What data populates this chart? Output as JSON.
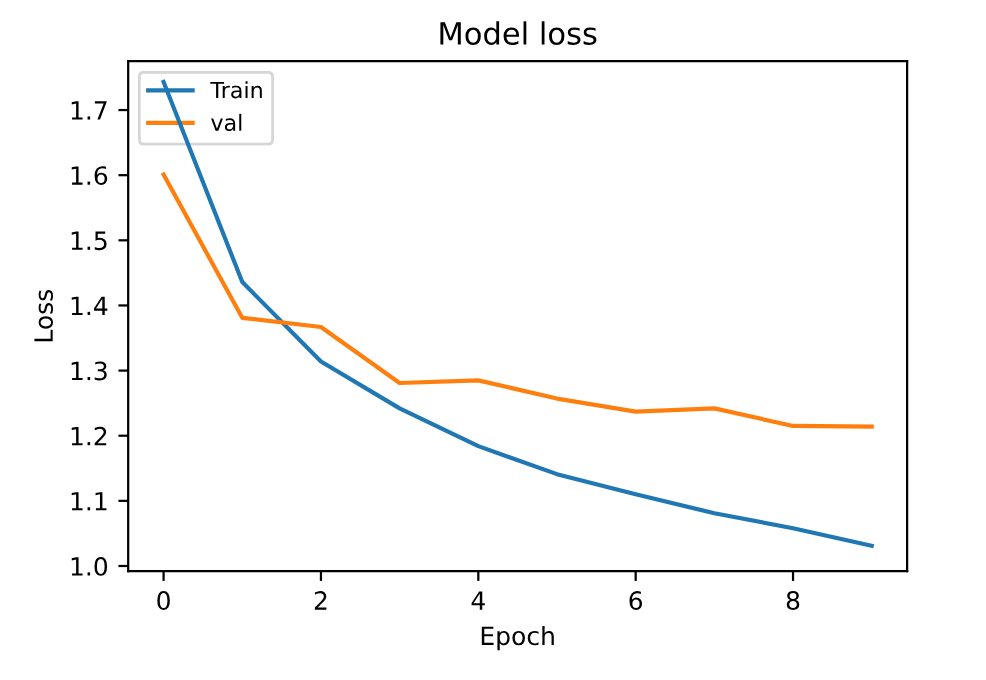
{
  "chart_data": {
    "type": "line",
    "title": "Model loss",
    "xlabel": "Epoch",
    "ylabel": "Loss",
    "x": [
      0,
      1,
      2,
      3,
      4,
      5,
      6,
      7,
      8,
      9
    ],
    "series": [
      {
        "name": "Train",
        "color": "#1f77b4",
        "values": [
          1.743,
          1.436,
          1.314,
          1.242,
          1.184,
          1.141,
          1.11,
          1.081,
          1.058,
          1.031
        ]
      },
      {
        "name": "val",
        "color": "#ff7f0e",
        "values": [
          1.601,
          1.381,
          1.367,
          1.281,
          1.285,
          1.257,
          1.237,
          1.242,
          1.215,
          1.214
        ]
      }
    ],
    "xlim": [
      -0.45,
      9.45
    ],
    "ylim": [
      0.992,
      1.775
    ],
    "xticks": [
      0,
      2,
      4,
      6,
      8
    ],
    "yticks": [
      {
        "value": 1,
        "label": "1.0"
      },
      1.1,
      1.2,
      1.3,
      1.4,
      1.5,
      1.6,
      1.7
    ],
    "legend": "upper left",
    "grid": false
  }
}
